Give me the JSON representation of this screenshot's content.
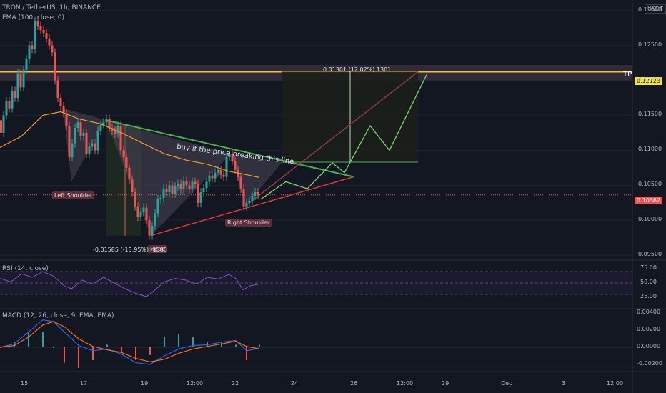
{
  "header": {
    "symbol_line": "TRON / TetherUS, 1h, BINANCE",
    "ema_line": "EMA (100, close, 0)",
    "currency": "USDT"
  },
  "panes": {
    "rsi_label": "RSI (14, close)",
    "macd_label": "MACD (12, 26, close, 9, EMA, EMA)"
  },
  "price_axis": {
    "ticks": [
      "0.13000",
      "0.12500",
      "0.12000",
      "0.11500",
      "0.11000",
      "0.10500",
      "0.10000",
      "0.09500"
    ]
  },
  "rsi_axis": {
    "ticks": [
      "75.00",
      "50.00",
      "25.00"
    ]
  },
  "macd_axis": {
    "ticks": [
      "0.00400",
      "0.00200",
      "0.00000",
      "-0.00200"
    ]
  },
  "time_axis": {
    "ticks": [
      "15",
      "17",
      "19",
      "12:00",
      "22",
      "24",
      "26",
      "12:00",
      "29",
      "Dec",
      "3",
      "12:00"
    ]
  },
  "price_labels": {
    "tp_value": "0.12123",
    "current_value": "0.10362",
    "tp_text": "TP"
  },
  "annotations": {
    "trendline_text": "buy if the price breaking this line",
    "left_shoulder": "Left Shoulder",
    "head": "Head",
    "right_shoulder": "Right Shoulder",
    "measure_down": "-0.01585 (-13.95%) -1585",
    "measure_up": "0.01301 (12.02%) 1301"
  },
  "colors": {
    "background": "#131722",
    "up": "#26a69a",
    "down": "#ef5350",
    "ema": "#f0a020",
    "tp_line": "#f0c040",
    "neckline": "#4caf50",
    "rsi": "#7e57c2",
    "macd": "#2962ff",
    "signal": "#ff6d00",
    "label_bg": "#5d2e3a"
  },
  "chart_data": {
    "type": "candlestick",
    "title": "TRON / TetherUS, 1h, BINANCE",
    "ylim": [
      0.0945,
      0.1315
    ],
    "current_price": 0.10362,
    "target_price": 0.12123,
    "path": [
      [
        0,
        0.1143
      ],
      [
        3,
        0.1125
      ],
      [
        7,
        0.115
      ],
      [
        11,
        0.117
      ],
      [
        15,
        0.116
      ],
      [
        19,
        0.1185
      ],
      [
        23,
        0.1175
      ],
      [
        27,
        0.121
      ],
      [
        31,
        0.119
      ],
      [
        35,
        0.1215
      ],
      [
        39,
        0.123
      ],
      [
        43,
        0.125
      ],
      [
        47,
        0.1245
      ],
      [
        51,
        0.1285
      ],
      [
        55,
        0.1278
      ],
      [
        59,
        0.1272
      ],
      [
        63,
        0.1268
      ],
      [
        67,
        0.126
      ],
      [
        71,
        0.125
      ],
      [
        75,
        0.124
      ],
      [
        79,
        0.12
      ],
      [
        83,
        0.1175
      ],
      [
        87,
        0.1163
      ],
      [
        91,
        0.1153
      ],
      [
        95,
        0.1135
      ],
      [
        99,
        0.109
      ],
      [
        103,
        0.111
      ],
      [
        107,
        0.1132
      ],
      [
        111,
        0.114
      ],
      [
        115,
        0.112
      ],
      [
        119,
        0.1125
      ],
      [
        123,
        0.1095
      ],
      [
        127,
        0.1105
      ],
      [
        131,
        0.111
      ],
      [
        135,
        0.11
      ],
      [
        139,
        0.1128
      ],
      [
        143,
        0.1136
      ],
      [
        147,
        0.114
      ],
      [
        151,
        0.1145
      ],
      [
        155,
        0.1132
      ],
      [
        159,
        0.1128
      ],
      [
        163,
        0.1124
      ],
      [
        167,
        0.1135
      ],
      [
        171,
        0.11
      ],
      [
        175,
        0.109
      ],
      [
        179,
        0.1075
      ],
      [
        183,
        0.1058
      ],
      [
        187,
        0.104
      ],
      [
        191,
        0.102
      ],
      [
        195,
        0.1005
      ],
      [
        199,
        0.1012
      ],
      [
        203,
        0.1018
      ],
      [
        207,
        0.1
      ],
      [
        211,
        0.0978
      ],
      [
        215,
        0.0992
      ],
      [
        219,
        0.101
      ],
      [
        223,
        0.103
      ],
      [
        227,
        0.1032
      ],
      [
        231,
        0.1045
      ],
      [
        235,
        0.104
      ],
      [
        239,
        0.105
      ],
      [
        243,
        0.1038
      ],
      [
        247,
        0.1048
      ],
      [
        251,
        0.1052
      ],
      [
        255,
        0.1044
      ],
      [
        259,
        0.1056
      ],
      [
        263,
        0.105
      ],
      [
        267,
        0.1045
      ],
      [
        271,
        0.1055
      ],
      [
        275,
        0.1052
      ],
      [
        279,
        0.1025
      ],
      [
        283,
        0.104
      ],
      [
        287,
        0.1046
      ],
      [
        291,
        0.1055
      ],
      [
        295,
        0.1064
      ],
      [
        299,
        0.106
      ],
      [
        303,
        0.1068
      ],
      [
        307,
        0.1072
      ],
      [
        311,
        0.1065
      ],
      [
        315,
        0.1062
      ],
      [
        319,
        0.109
      ],
      [
        323,
        0.1095
      ],
      [
        327,
        0.1085
      ],
      [
        331,
        0.1072
      ],
      [
        335,
        0.1062
      ],
      [
        339,
        0.1045
      ],
      [
        343,
        0.102
      ],
      [
        347,
        0.1025
      ],
      [
        351,
        0.1028
      ],
      [
        355,
        0.1035
      ],
      [
        359,
        0.104
      ],
      [
        363,
        0.1036
      ]
    ],
    "ema_100": [
      [
        0,
        0.1104
      ],
      [
        30,
        0.112
      ],
      [
        60,
        0.115
      ],
      [
        85,
        0.1155
      ],
      [
        110,
        0.1145
      ],
      [
        140,
        0.1138
      ],
      [
        170,
        0.1125
      ],
      [
        200,
        0.111
      ],
      [
        230,
        0.1095
      ],
      [
        260,
        0.1086
      ],
      [
        290,
        0.108
      ],
      [
        320,
        0.107
      ],
      [
        345,
        0.1065
      ],
      [
        363,
        0.1061
      ]
    ],
    "rsi": [
      [
        0,
        58
      ],
      [
        15,
        52
      ],
      [
        30,
        66
      ],
      [
        45,
        60
      ],
      [
        60,
        70
      ],
      [
        75,
        62
      ],
      [
        90,
        45
      ],
      [
        100,
        40
      ],
      [
        115,
        55
      ],
      [
        130,
        48
      ],
      [
        145,
        60
      ],
      [
        160,
        50
      ],
      [
        175,
        40
      ],
      [
        190,
        32
      ],
      [
        205,
        26
      ],
      [
        215,
        36
      ],
      [
        230,
        52
      ],
      [
        245,
        58
      ],
      [
        260,
        55
      ],
      [
        275,
        48
      ],
      [
        290,
        60
      ],
      [
        305,
        57
      ],
      [
        320,
        65
      ],
      [
        330,
        58
      ],
      [
        340,
        38
      ],
      [
        350,
        45
      ],
      [
        363,
        48
      ]
    ],
    "rsi_levels": [
      70,
      50,
      30
    ],
    "macd": [
      [
        0,
        0.0
      ],
      [
        20,
        0.0004
      ],
      [
        40,
        0.0018
      ],
      [
        60,
        0.0032
      ],
      [
        75,
        0.003
      ],
      [
        90,
        0.0018
      ],
      [
        110,
        0.0002
      ],
      [
        130,
        -0.0004
      ],
      [
        150,
        -0.0002
      ],
      [
        170,
        -0.0008
      ],
      [
        190,
        -0.0018
      ],
      [
        210,
        -0.002
      ],
      [
        230,
        -0.001
      ],
      [
        250,
        -0.0002
      ],
      [
        270,
        0.0002
      ],
      [
        290,
        0.0003
      ],
      [
        310,
        0.0006
      ],
      [
        330,
        0.0008
      ],
      [
        345,
        -0.0004
      ],
      [
        363,
        -0.0001
      ]
    ],
    "signal": [
      [
        0,
        0.0
      ],
      [
        20,
        0.0002
      ],
      [
        40,
        0.0012
      ],
      [
        60,
        0.0026
      ],
      [
        75,
        0.003
      ],
      [
        90,
        0.0024
      ],
      [
        110,
        0.001
      ],
      [
        130,
        0.0001
      ],
      [
        150,
        -0.0003
      ],
      [
        170,
        -0.0006
      ],
      [
        190,
        -0.0013
      ],
      [
        210,
        -0.0017
      ],
      [
        230,
        -0.0014
      ],
      [
        250,
        -0.0007
      ],
      [
        270,
        -0.0002
      ],
      [
        290,
        0.0001
      ],
      [
        310,
        0.0004
      ],
      [
        330,
        0.0007
      ],
      [
        345,
        0.0001
      ],
      [
        363,
        -0.0002
      ]
    ]
  }
}
